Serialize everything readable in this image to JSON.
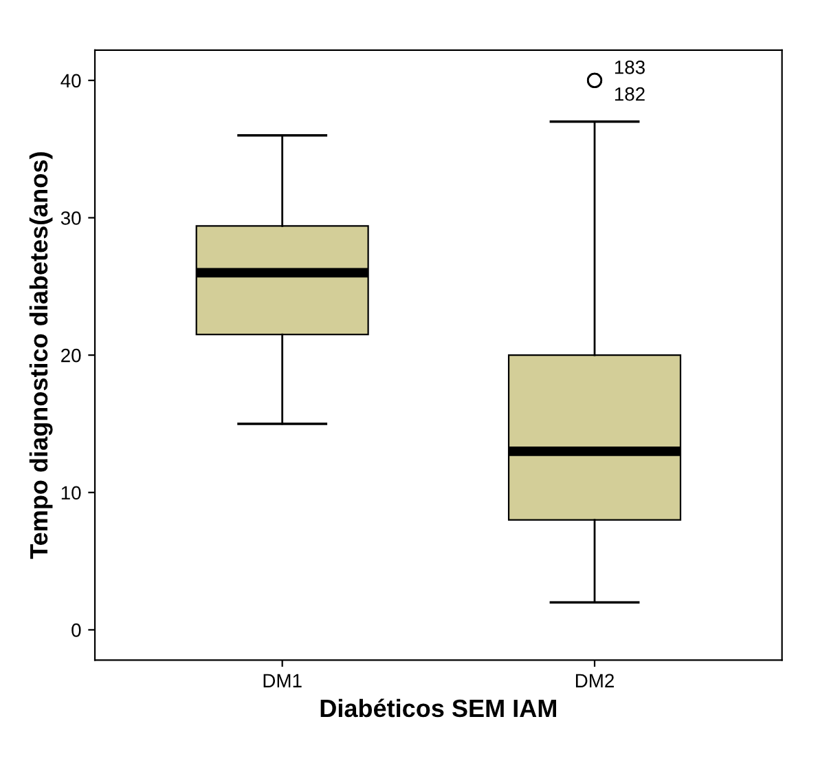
{
  "chart_data": {
    "type": "box",
    "xlabel": "Diabéticos SEM IAM",
    "ylabel": "Tempo diagnostico diabetes(anos)",
    "categories": [
      "DM1",
      "DM2"
    ],
    "color": "#d3ce98",
    "boxes": [
      {
        "low": 15,
        "q1": 21.5,
        "median": 26,
        "q3": 29.4,
        "high": 36
      },
      {
        "low": 2,
        "q1": 8,
        "median": 13,
        "q3": 20,
        "high": 37,
        "outliers": [
          40,
          40
        ]
      }
    ],
    "annotations": [
      "183",
      "182"
    ],
    "ylim": [
      -2.2,
      42.2
    ],
    "yticks": [
      0,
      10,
      20,
      30,
      40
    ],
    "grid": false
  }
}
